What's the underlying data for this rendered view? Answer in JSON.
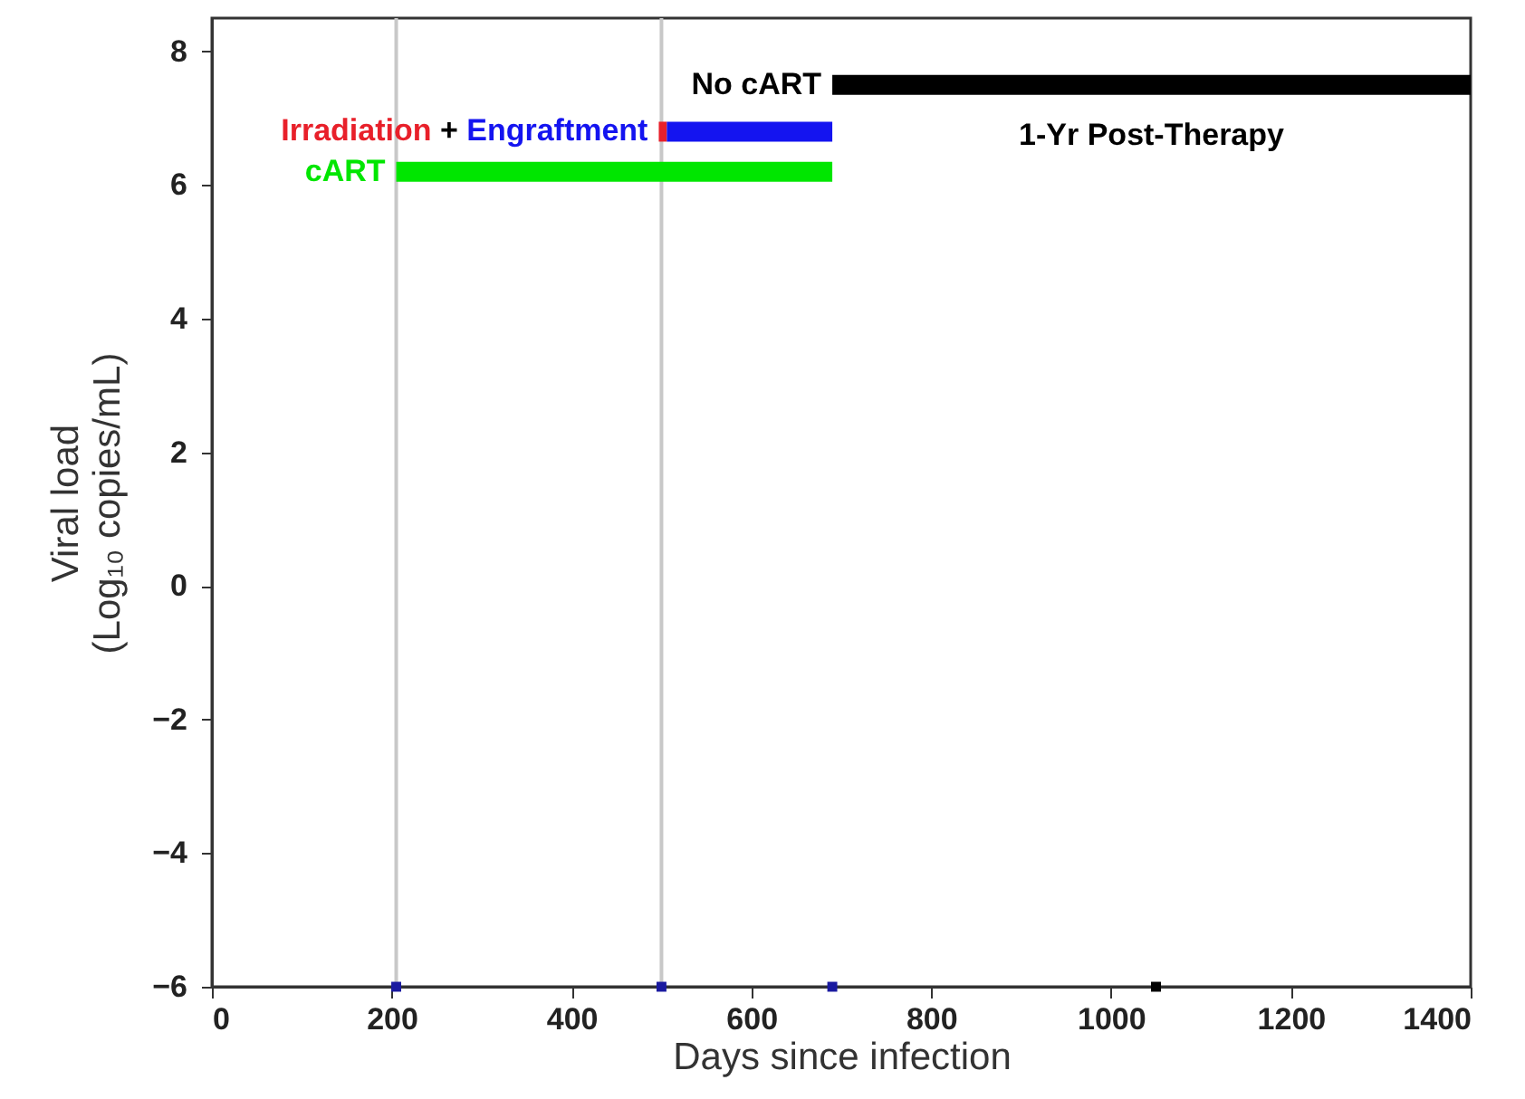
{
  "chart_data": {
    "type": "line",
    "xlabel": "Days since infection",
    "ylabel": "Viral load\n(Log₁₀ copies/mL)",
    "xlim": [
      0,
      1400
    ],
    "ylim": [
      -6,
      8.5
    ],
    "xticks": [
      0,
      200,
      400,
      600,
      800,
      1000,
      1200,
      1400
    ],
    "yticks": [
      -6,
      -4,
      -2,
      0,
      2,
      4,
      6,
      8
    ],
    "series": [
      {
        "name": "No cART",
        "color": "#000000",
        "x": [
          690,
          1400
        ],
        "values": [
          7.5,
          7.5
        ]
      },
      {
        "name": "Irradiation",
        "color": "#e8202a",
        "x": [
          497,
          506
        ],
        "values": [
          6.8,
          6.8
        ]
      },
      {
        "name": "Engraftment",
        "color": "#1414f0",
        "x": [
          506,
          690
        ],
        "values": [
          6.8,
          6.8
        ]
      },
      {
        "name": "cART",
        "color": "#00e600",
        "x": [
          205,
          690
        ],
        "values": [
          6.2,
          6.2
        ]
      },
      {
        "type": "scatter",
        "marker": "square",
        "color": "#1a1aa0",
        "x": [
          205,
          500,
          690
        ],
        "values": [
          -6,
          -6,
          -6
        ]
      },
      {
        "type": "scatter",
        "marker": "square",
        "color": "#000000",
        "x": [
          1050
        ],
        "values": [
          -6
        ]
      }
    ],
    "ref_lines": [
      {
        "axis": "x",
        "value": 205,
        "color": "#c8c8c8"
      },
      {
        "axis": "x",
        "value": 500,
        "color": "#c8c8c8"
      }
    ],
    "annotations": [
      "+",
      "1-Yr Post-Therapy"
    ]
  }
}
